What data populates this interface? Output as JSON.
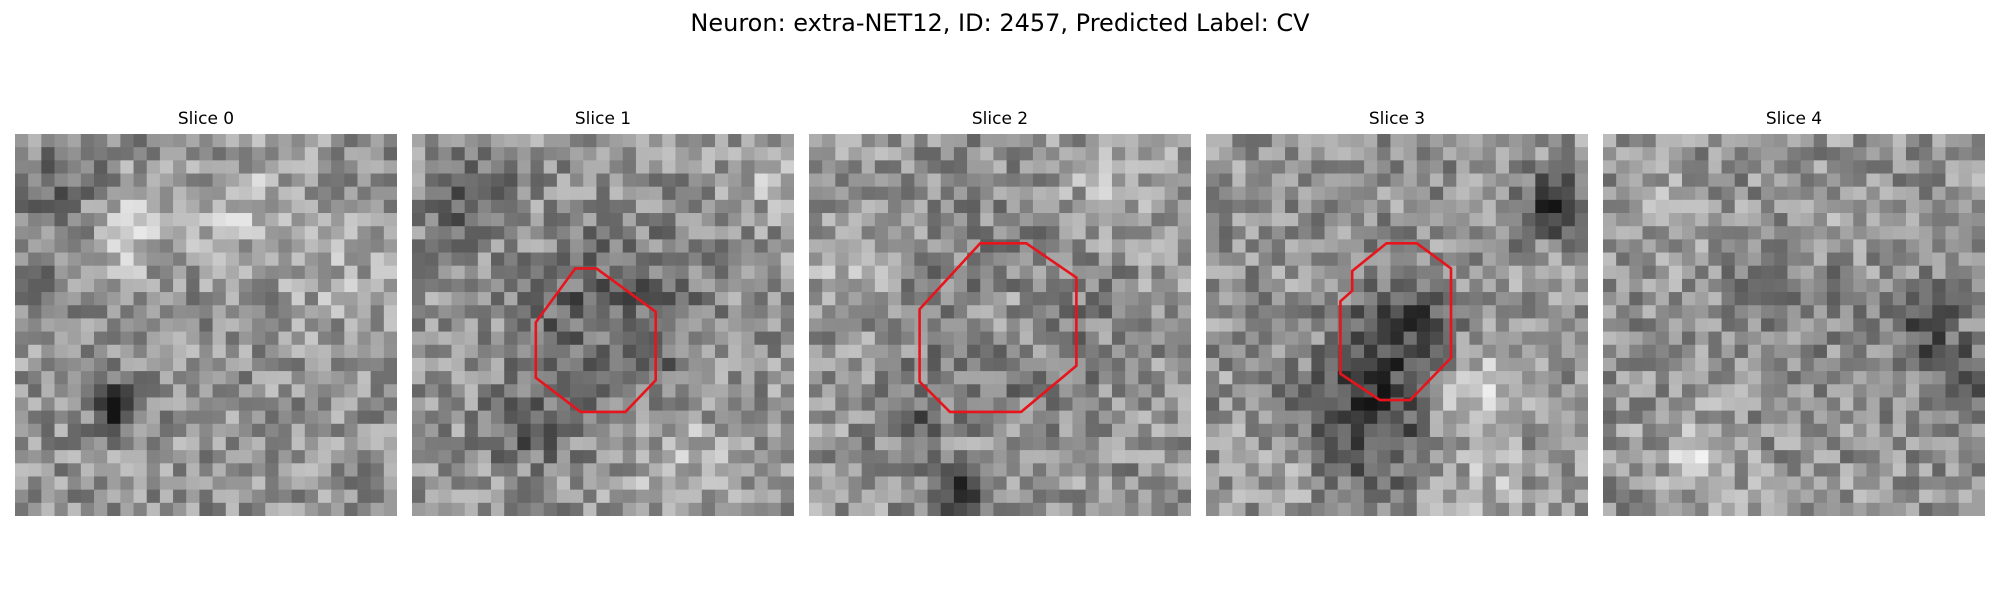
{
  "figure": {
    "title": "Neuron: extra-NET12, ID: 2457, Predicted Label: CV"
  },
  "slices": [
    {
      "title": "Slice 0",
      "has_outline": false
    },
    {
      "title": "Slice 1",
      "has_outline": true
    },
    {
      "title": "Slice 2",
      "has_outline": true
    },
    {
      "title": "Slice 3",
      "has_outline": true
    },
    {
      "title": "Slice 4",
      "has_outline": false
    }
  ],
  "colors": {
    "outline": "#e8141c",
    "background": "#ffffff",
    "text": "#000000"
  },
  "colormap": "grayscale"
}
